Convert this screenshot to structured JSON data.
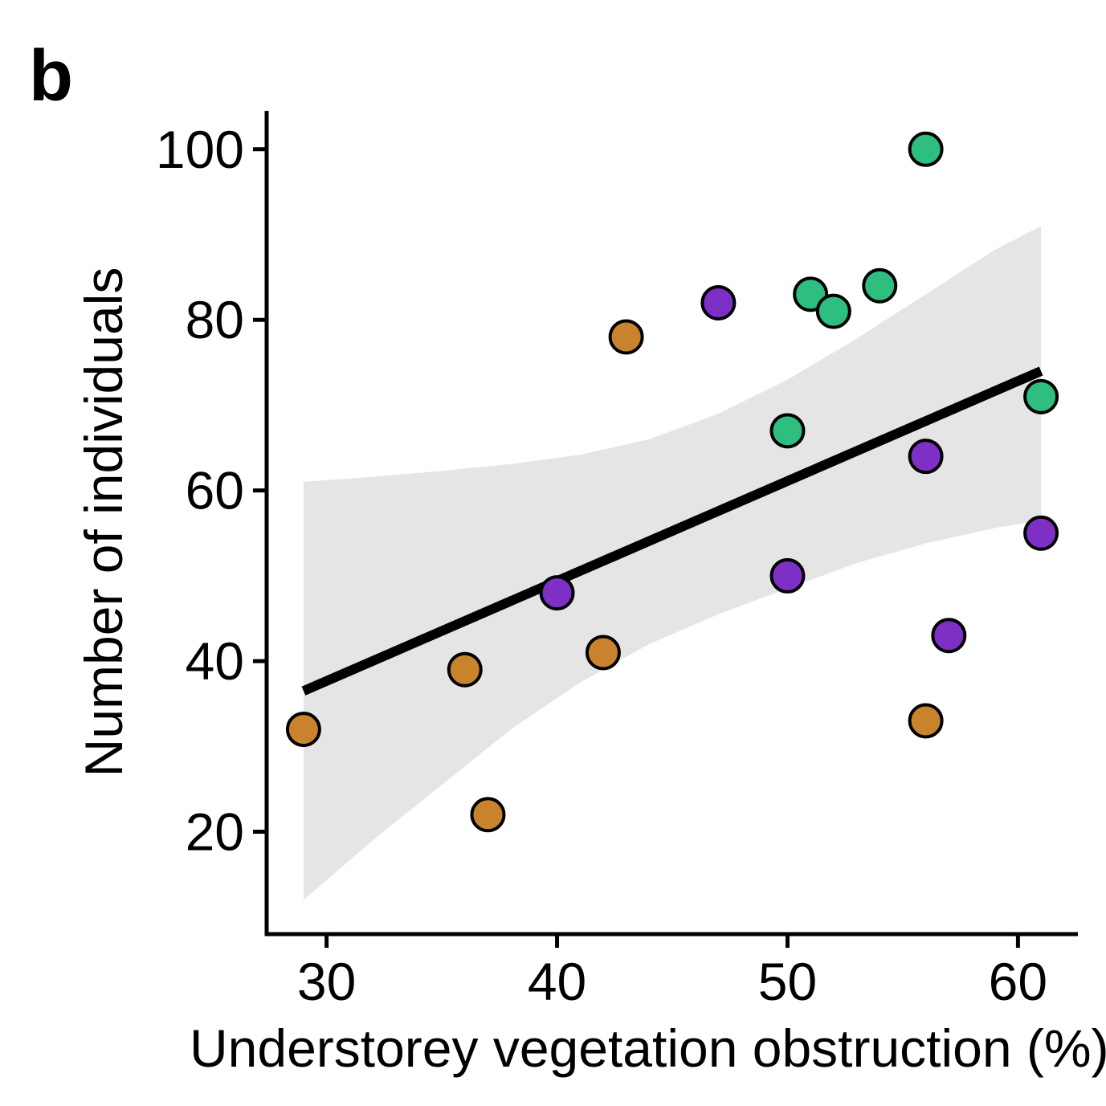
{
  "chart_data": {
    "type": "scatter",
    "panel_label": "b",
    "xlabel": "Understorey vegetation obstruction (%)",
    "ylabel": "Number of individuals",
    "xlim": [
      27.4,
      62.6
    ],
    "ylim": [
      8,
      104.5
    ],
    "xticks": [
      30,
      40,
      50,
      60
    ],
    "yticks": [
      20,
      40,
      60,
      80,
      100
    ],
    "grid": false,
    "legend": "none",
    "series": [
      {
        "color": "#C8832C",
        "points": [
          [
            29,
            32
          ],
          [
            36,
            39
          ],
          [
            37,
            22
          ],
          [
            42,
            41
          ],
          [
            43,
            78
          ],
          [
            56,
            33
          ]
        ]
      },
      {
        "color": "#7E2FC6",
        "points": [
          [
            40,
            48
          ],
          [
            47,
            82
          ],
          [
            50,
            50
          ],
          [
            56,
            64
          ],
          [
            57,
            43
          ],
          [
            61,
            55
          ]
        ]
      },
      {
        "color": "#2DBE80",
        "points": [
          [
            50,
            67
          ],
          [
            51,
            83
          ],
          [
            52,
            81
          ],
          [
            54,
            84
          ],
          [
            56,
            100
          ],
          [
            61,
            71
          ]
        ]
      }
    ],
    "regression": {
      "color": "#000000",
      "x": [
        29,
        61
      ],
      "y": [
        36.5,
        74
      ]
    },
    "confidence_band": {
      "color": "#E5E5E5",
      "x": [
        29,
        32,
        35,
        38,
        41,
        44,
        47,
        50,
        53,
        56,
        59,
        61
      ],
      "lower": [
        12,
        19,
        25.5,
        32,
        37.5,
        42,
        45.5,
        48.5,
        51.5,
        53.8,
        55.6,
        56.5
      ],
      "upper": [
        61,
        61.6,
        62.3,
        63.1,
        64.2,
        66,
        69,
        73,
        77.8,
        83,
        88.2,
        91
      ]
    }
  }
}
